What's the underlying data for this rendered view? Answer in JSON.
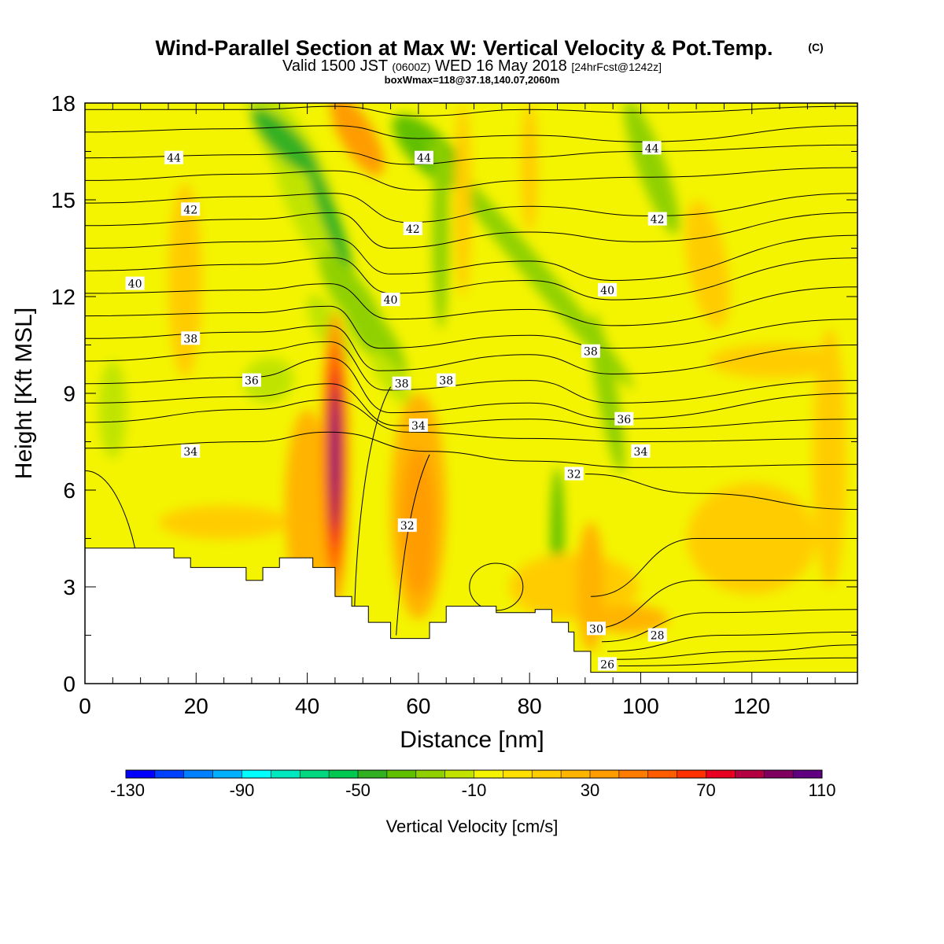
{
  "title": {
    "main": "Wind-Parallel Section at Max W: Vertical Velocity & Pot.Temp.",
    "copyright": "(C)",
    "valid_a": "Valid 1500 JST",
    "valid_z": "(0600Z)",
    "valid_b": "WED 16 May 2018",
    "valid_fcst": "[24hrFcst@1242z]",
    "boxwmax": "boxWmax=118@37.18,140.07,2060m"
  },
  "chart_data": {
    "type": "heatmap",
    "xlabel": "Distance [nm]",
    "ylabel": "Height [Kft MSL]",
    "xlim": [
      0,
      139
    ],
    "ylim": [
      0,
      18
    ],
    "x_ticks": [
      0,
      20,
      40,
      60,
      80,
      100,
      120
    ],
    "y_ticks": [
      0,
      3,
      6,
      9,
      12,
      15,
      18
    ],
    "colorbar": {
      "label": "Vertical Velocity [cm/s]",
      "tick_values": [
        -130,
        -90,
        -50,
        -10,
        30,
        70,
        110
      ],
      "bin_min": -130,
      "bin_step": 10,
      "colors": [
        "#0000ff",
        "#0040ff",
        "#0080ff",
        "#00b0ff",
        "#00ffff",
        "#00e8c0",
        "#00d880",
        "#00c850",
        "#30b020",
        "#60c000",
        "#90d000",
        "#c0e400",
        "#f4f400",
        "#ffe000",
        "#ffcc00",
        "#ffb400",
        "#ff9c00",
        "#ff7c00",
        "#ff5c00",
        "#ff3000",
        "#e80020",
        "#b40040",
        "#800060",
        "#600080"
      ]
    },
    "terrain_kft": [
      [
        0,
        4.2
      ],
      [
        16,
        4.2
      ],
      [
        16,
        3.9
      ],
      [
        19,
        3.9
      ],
      [
        19,
        3.6
      ],
      [
        29,
        3.6
      ],
      [
        29,
        3.2
      ],
      [
        32,
        3.2
      ],
      [
        32,
        3.6
      ],
      [
        35,
        3.6
      ],
      [
        35,
        3.9
      ],
      [
        41,
        3.9
      ],
      [
        41,
        3.6
      ],
      [
        45,
        3.6
      ],
      [
        45,
        2.7
      ],
      [
        48,
        2.7
      ],
      [
        48,
        2.4
      ],
      [
        51,
        2.4
      ],
      [
        51,
        1.9
      ],
      [
        55,
        1.9
      ],
      [
        55,
        1.4
      ],
      [
        62,
        1.4
      ],
      [
        62,
        1.9
      ],
      [
        65,
        1.9
      ],
      [
        65,
        2.4
      ],
      [
        74,
        2.4
      ],
      [
        74,
        2.2
      ],
      [
        81,
        2.2
      ],
      [
        81,
        2.3
      ],
      [
        84,
        2.3
      ],
      [
        84,
        1.9
      ],
      [
        87,
        1.9
      ],
      [
        87,
        1.6
      ],
      [
        88,
        1.6
      ],
      [
        88,
        1.0
      ],
      [
        91,
        1.0
      ],
      [
        91,
        0.35
      ],
      [
        139,
        0.35
      ]
    ],
    "theta_levels": [
      26,
      28,
      30,
      32,
      34,
      36,
      38,
      40,
      42,
      44
    ],
    "theta_labels": [
      {
        "text": "44",
        "x": 16,
        "y": 16.3
      },
      {
        "text": "44",
        "x": 61,
        "y": 16.3
      },
      {
        "text": "44",
        "x": 102,
        "y": 16.6
      },
      {
        "text": "42",
        "x": 19,
        "y": 14.7
      },
      {
        "text": "42",
        "x": 59,
        "y": 14.1
      },
      {
        "text": "42",
        "x": 103,
        "y": 14.4
      },
      {
        "text": "40",
        "x": 9,
        "y": 12.4
      },
      {
        "text": "40",
        "x": 55,
        "y": 11.9
      },
      {
        "text": "40",
        "x": 94,
        "y": 12.2
      },
      {
        "text": "38",
        "x": 19,
        "y": 10.7
      },
      {
        "text": "38",
        "x": 65,
        "y": 9.4
      },
      {
        "text": "38",
        "x": 91,
        "y": 10.3
      },
      {
        "text": "38",
        "x": 57,
        "y": 9.3
      },
      {
        "text": "36",
        "x": 30,
        "y": 9.4
      },
      {
        "text": "36",
        "x": 97,
        "y": 8.2
      },
      {
        "text": "34",
        "x": 19,
        "y": 7.2
      },
      {
        "text": "34",
        "x": 60,
        "y": 8.0
      },
      {
        "text": "34",
        "x": 100,
        "y": 7.2
      },
      {
        "text": "32",
        "x": 88,
        "y": 6.5
      },
      {
        "text": "32",
        "x": 58,
        "y": 4.9
      },
      {
        "text": "30",
        "x": 92,
        "y": 1.7
      },
      {
        "text": "28",
        "x": 103,
        "y": 1.5
      },
      {
        "text": "26",
        "x": 94,
        "y": 0.6
      }
    ]
  }
}
